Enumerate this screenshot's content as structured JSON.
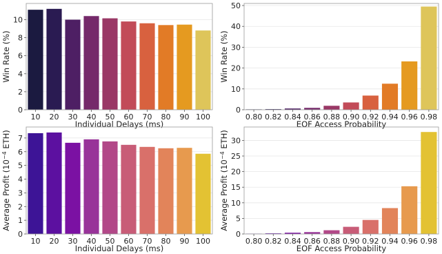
{
  "chart_data": [
    {
      "type": "bar",
      "panel": "top-left",
      "categories": [
        "10",
        "20",
        "30",
        "40",
        "50",
        "60",
        "70",
        "80",
        "90",
        "100"
      ],
      "values": [
        11.1,
        11.2,
        10.0,
        10.4,
        10.15,
        9.8,
        9.6,
        9.4,
        9.45,
        8.8
      ],
      "xlabel": "Individual Delays (ms)",
      "ylabel": "Win Rate (%)",
      "ylim": [
        0,
        11.8
      ],
      "yticks": [
        0,
        2,
        4,
        6,
        8,
        10
      ],
      "grid": "horizontal",
      "colors": [
        "#1b1a40",
        "#2a1b52",
        "#4e1f64",
        "#75296a",
        "#9a3866",
        "#c24b58",
        "#d8613f",
        "#e27b26",
        "#e59a20",
        "#dec55a"
      ]
    },
    {
      "type": "bar",
      "panel": "top-right",
      "categories": [
        "0.80",
        "0.82",
        "0.84",
        "0.86",
        "0.88",
        "0.90",
        "0.92",
        "0.94",
        "0.96",
        "0.98"
      ],
      "values": [
        0.2,
        0.3,
        0.6,
        0.9,
        1.9,
        3.5,
        6.8,
        12.5,
        23.2,
        49.5
      ],
      "xlabel": "EOF Access Probability",
      "ylabel": "Win Rate (%)",
      "ylim": [
        0,
        51
      ],
      "yticks": [
        0,
        10,
        20,
        30,
        40,
        50
      ],
      "grid": "horizontal",
      "colors": [
        "#1b1a40",
        "#2a1b52",
        "#4e1f64",
        "#75296a",
        "#9a3866",
        "#c24b58",
        "#d8613f",
        "#e27b26",
        "#e59a20",
        "#dec55a"
      ]
    },
    {
      "type": "bar",
      "panel": "bottom-left",
      "categories": [
        "10",
        "20",
        "30",
        "40",
        "50",
        "60",
        "70",
        "80",
        "90",
        "100"
      ],
      "values": [
        7.35,
        7.4,
        6.65,
        6.9,
        6.75,
        6.5,
        6.35,
        6.25,
        6.28,
        5.85
      ],
      "xlabel": "Individual Delays (ms)",
      "ylabel": "Average Profit (10",
      "ylabel_sup": "−4",
      "ylabel_suffix": " ETH)",
      "ylim": [
        0,
        7.8
      ],
      "yticks": [
        0,
        1,
        2,
        3,
        4,
        5,
        6,
        7
      ],
      "grid": "horizontal",
      "colors": [
        "#3d1496",
        "#5c10a0",
        "#7b11a3",
        "#983399",
        "#b24888",
        "#c85c77",
        "#d9706a",
        "#e2845a",
        "#e79a4e",
        "#e3c233"
      ]
    },
    {
      "type": "bar",
      "panel": "bottom-right",
      "categories": [
        "0.80",
        "0.82",
        "0.84",
        "0.86",
        "0.88",
        "0.90",
        "0.92",
        "0.94",
        "0.96",
        "0.98"
      ],
      "values": [
        0.1,
        0.2,
        0.4,
        0.6,
        1.2,
        2.3,
        4.5,
        8.3,
        15.3,
        32.7
      ],
      "xlabel": "EOF Access Probability",
      "ylabel": "Average Profit (10",
      "ylabel_sup": "−4",
      "ylabel_suffix": " ETH)",
      "ylim": [
        0,
        34.3
      ],
      "yticks": [
        0,
        5,
        10,
        15,
        20,
        25,
        30
      ],
      "grid": "horizontal",
      "colors": [
        "#3d1496",
        "#5c10a0",
        "#7b11a3",
        "#983399",
        "#b24888",
        "#c85c77",
        "#d9706a",
        "#e2845a",
        "#e79a4e",
        "#e3c233"
      ]
    }
  ]
}
